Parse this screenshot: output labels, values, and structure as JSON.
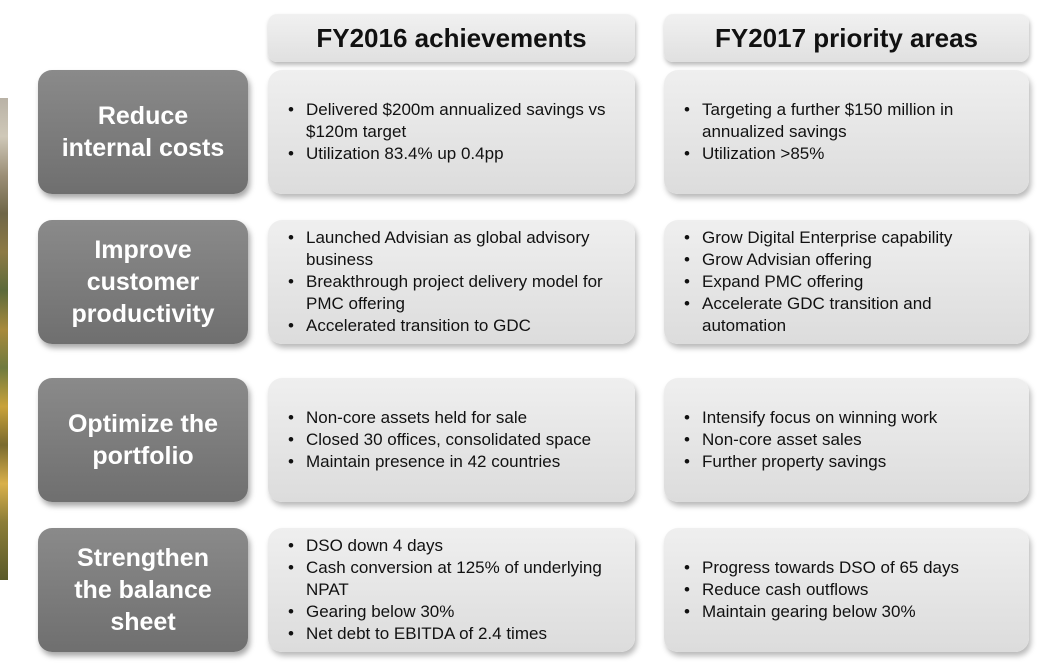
{
  "headers": {
    "col1": "FY2016 achievements",
    "col2": "FY2017 priority areas"
  },
  "rows": [
    {
      "label": "Reduce\ninternal costs",
      "fy2016": [
        "Delivered $200m annualized savings vs $120m target",
        "Utilization 83.4% up 0.4pp"
      ],
      "fy2017": [
        "Targeting a further $150 million in annualized savings",
        "Utilization >85%"
      ]
    },
    {
      "label": "Improve\ncustomer\nproductivity",
      "fy2016": [
        "Launched Advisian as global advisory business",
        "Breakthrough project delivery model for PMC offering",
        "Accelerated transition to GDC"
      ],
      "fy2017": [
        "Grow Digital Enterprise capability",
        "Grow Advisian offering",
        "Expand PMC offering",
        "Accelerate GDC transition and automation"
      ]
    },
    {
      "label": "Optimize the\nportfolio",
      "fy2016": [
        "Non-core assets held for sale",
        "Closed 30 offices, consolidated space",
        "Maintain presence in 42 countries"
      ],
      "fy2017": [
        "Intensify focus on winning work",
        "Non-core asset sales",
        "Further property savings"
      ]
    },
    {
      "label": "Strengthen\nthe balance\nsheet",
      "fy2016": [
        "DSO down 4 days",
        "Cash conversion at 125% of underlying NPAT",
        "Gearing below 30%",
        "Net debt to EBITDA of 2.4 times"
      ],
      "fy2017": [
        "Progress towards DSO of 65 days",
        "Reduce cash outflows",
        "Maintain gearing below 30%"
      ]
    }
  ]
}
